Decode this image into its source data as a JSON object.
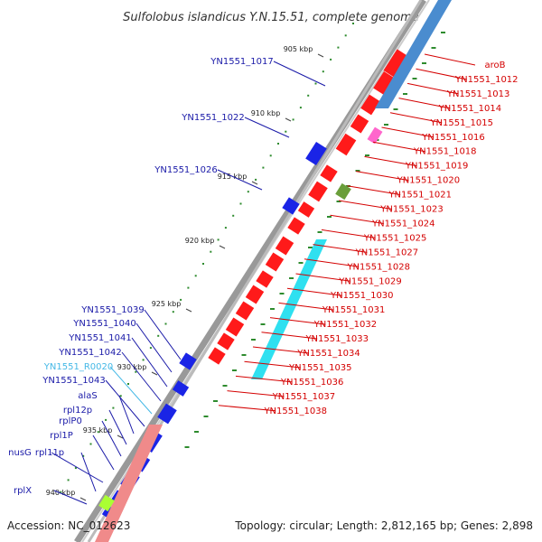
{
  "title": "Sulfolobus islandicus Y.N.15.51, complete genome",
  "accession": "Accession: NC_012623",
  "summary": "Topology: circular; Length: 2,812,165 bp; Genes: 2,898",
  "colors": {
    "right_labels": "#d40000",
    "left_labels": "#1a1aa8",
    "rna_label": "#44b8e6",
    "backbone": "#888888",
    "gene_red": "#ff1a1a",
    "gene_blue": "#1a24e6",
    "gc_dots": "#2e8b2e"
  },
  "ticks": [
    "905 kbp",
    "910 kbp",
    "915 kbp",
    "920 kbp",
    "925 kbp",
    "930 kbp",
    "935 kbp",
    "940 kbp"
  ],
  "right_labels": [
    "aroB",
    "YN1551_1012",
    "YN1551_1013",
    "YN1551_1014",
    "YN1551_1015",
    "YN1551_1016",
    "YN1551_1018",
    "YN1551_1019",
    "YN1551_1020",
    "YN1551_1021",
    "YN1551_1023",
    "YN1551_1024",
    "YN1551_1025",
    "YN1551_1027",
    "YN1551_1028",
    "YN1551_1029",
    "YN1551_1030",
    "YN1551_1031",
    "YN1551_1032",
    "YN1551_1033",
    "YN1551_1034",
    "YN1551_1035",
    "YN1551_1036",
    "YN1551_1037",
    "YN1551_1038"
  ],
  "left_labels": [
    "YN1551_1017",
    "YN1551_1022",
    "YN1551_1026",
    "YN1551_1039",
    "YN1551_1040",
    "YN1551_1041",
    "YN1551_1042",
    "YN1551_R0020",
    "YN1551_1043",
    "alaS",
    "rpl12p",
    "rplP0",
    "rpl1P",
    "nusG",
    "rpl11p",
    "rplX"
  ]
}
